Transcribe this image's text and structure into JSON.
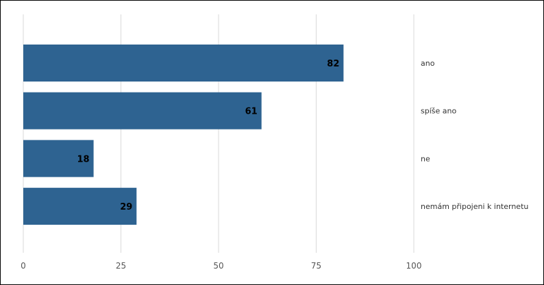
{
  "chart_data": {
    "type": "bar",
    "orientation": "horizontal",
    "categories": [
      "ano",
      "spíše ano",
      "ne",
      "nemám připojeni k internetu"
    ],
    "values": [
      82,
      61,
      18,
      29
    ],
    "xlim": [
      0,
      100
    ],
    "xticks": [
      "0",
      "25",
      "50",
      "75",
      "100"
    ],
    "grid": "vertical",
    "legend": "none",
    "bar_color": "#2e6391",
    "grid_color": "#d9d9d9",
    "title": "",
    "xlabel": "",
    "ylabel": ""
  }
}
